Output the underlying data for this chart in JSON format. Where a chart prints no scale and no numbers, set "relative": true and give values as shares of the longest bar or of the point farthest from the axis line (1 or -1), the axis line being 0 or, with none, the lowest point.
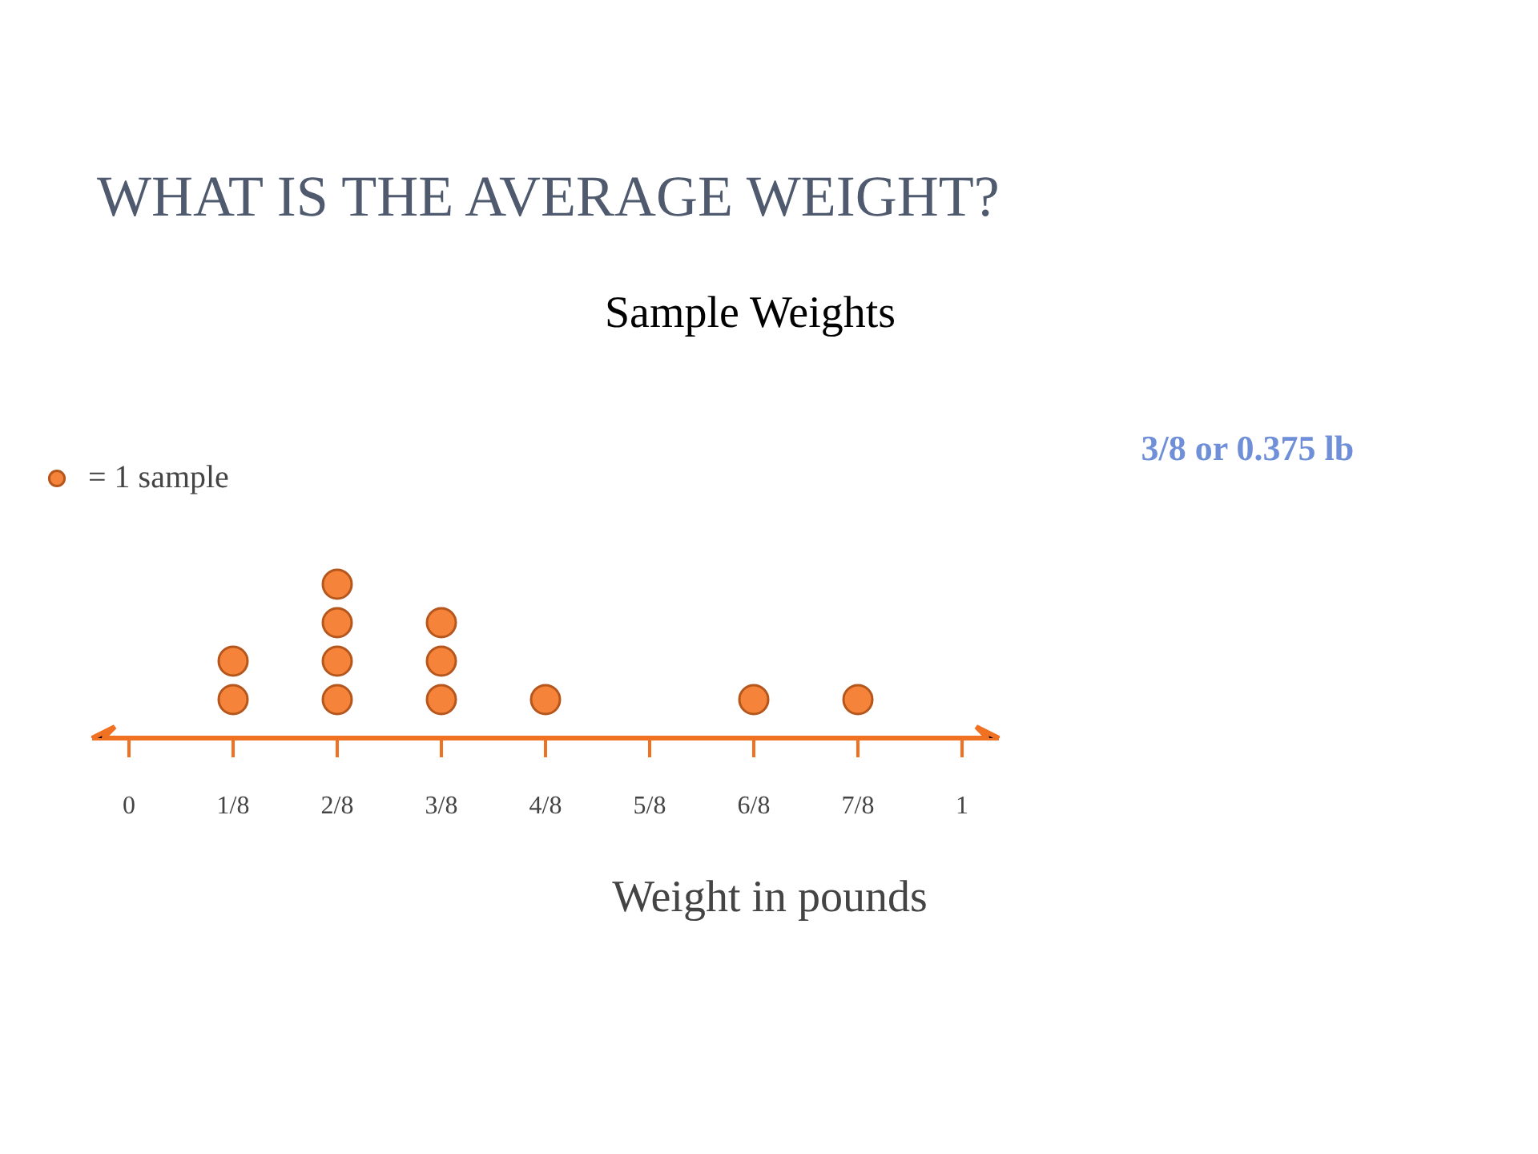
{
  "chart_data": {
    "type": "scatter",
    "title": "WHAT IS THE AVERAGE WEIGHT?",
    "subtitle": "Sample Weights",
    "xlabel": "Weight in pounds",
    "xlim": [
      -0.044,
      1.044
    ],
    "xticks": [
      0,
      {
        "value": 0.125,
        "label": "1/8"
      },
      {
        "value": 0.25,
        "label": "2/8"
      },
      {
        "value": 0.375,
        "label": "3/8"
      },
      {
        "value": 0.5,
        "label": "4/8"
      },
      {
        "value": 0.625,
        "label": "5/8"
      },
      {
        "value": 0.75,
        "label": "6/8"
      },
      {
        "value": 0.875,
        "label": "7/8"
      },
      1
    ],
    "series": [
      {
        "name": "= 1 sample",
        "color": "#f5833a",
        "x": [
          0.125,
          0.125,
          0.25,
          0.25,
          0.25,
          0.25,
          0.375,
          0.375,
          0.375,
          0.5,
          0.75,
          0.875
        ],
        "values": [
          0.25,
          0.5,
          0.25,
          0.5,
          0.75,
          1,
          0.25,
          0.5,
          0.75,
          0.25,
          0.25,
          0.25
        ]
      }
    ],
    "relative": true,
    "annotations": [
      "3/8 or 0.375 lb"
    ],
    "marker": "circle",
    "legend": "top left",
    "grid": false,
    "tick_labels": "x"
  }
}
